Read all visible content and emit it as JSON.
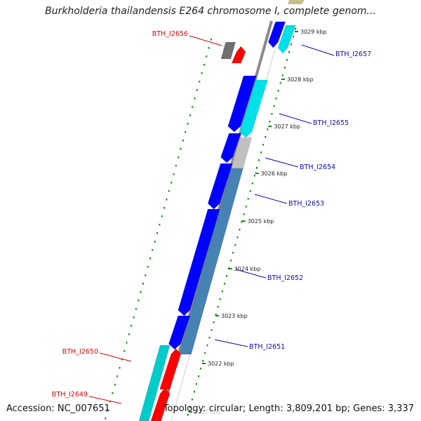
{
  "title": "Burkholderia thailandensis E264 chromosome I, complete genom...",
  "footer": {
    "accession_prefix": "Accession:",
    "accession": "NC_007651",
    "topology_prefix": "Topology:",
    "topology": "circular",
    "length_prefix": "Length:",
    "length": "3,809,201 bp",
    "genes_prefix": "Genes:",
    "genes": "3,337"
  },
  "colors": {
    "forward_gene": "#0000ff",
    "forward_gene_alt": "#00e0e8",
    "reverse_gene": "#ff0000",
    "reverse_gene_alt": "#00cccc",
    "pseudo_gene": "#c0c0c0",
    "pseudo_gene_dark": "#707070",
    "steelblue_gene": "#4682b4",
    "backbone": "#8a8a8a",
    "tick": "#118811",
    "forward_label": "#0a0ab8",
    "reverse_label": "#e00000"
  },
  "scale_labels": [
    "3029 kbp",
    "3028 kbp",
    "3027 kbp",
    "3026 kbp",
    "3025 kbp",
    "3024 kbp",
    "3023 kbp",
    "3022 kbp",
    "3021 kbp"
  ],
  "gene_labels": [
    {
      "text": "BTH_I2656",
      "strand": "reverse"
    },
    {
      "text": "BTH_I2657",
      "strand": "forward"
    },
    {
      "text": "BTH_I2655",
      "strand": "forward"
    },
    {
      "text": "BTH_I2654",
      "strand": "forward"
    },
    {
      "text": "BTH_I2653",
      "strand": "forward"
    },
    {
      "text": "BTH_I2652",
      "strand": "forward"
    },
    {
      "text": "BTH_I2651",
      "strand": "forward"
    },
    {
      "text": "BTH_I2650",
      "strand": "reverse"
    },
    {
      "text": "BTH_I2649",
      "strand": "reverse"
    }
  ]
}
